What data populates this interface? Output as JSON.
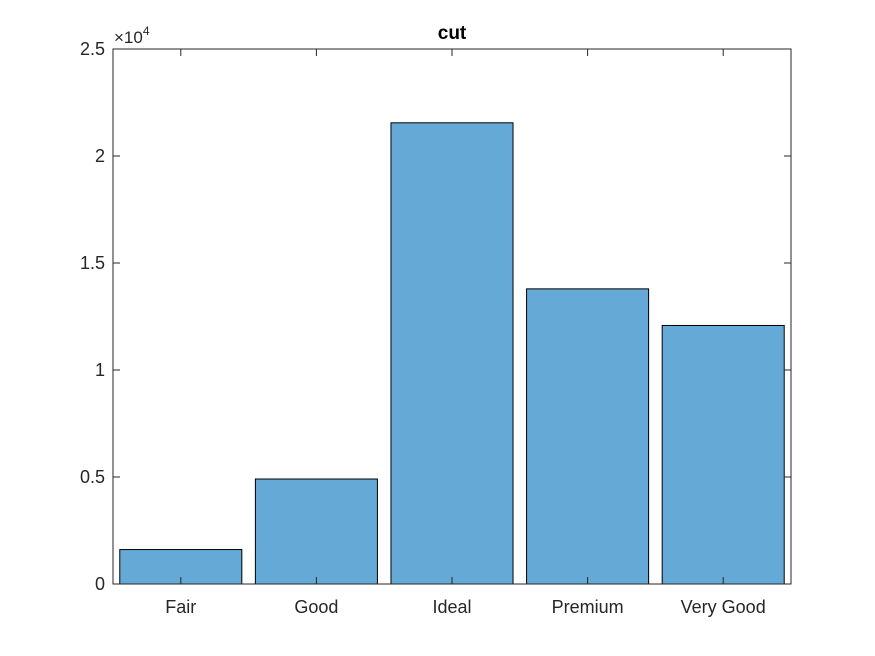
{
  "chart_data": {
    "type": "bar",
    "title": "cut",
    "xlabel": "",
    "ylabel": "",
    "categories": [
      "Fair",
      "Good",
      "Ideal",
      "Premium",
      "Very Good"
    ],
    "values": [
      1610,
      4906,
      21551,
      13791,
      12082
    ],
    "ylim": [
      0,
      25000
    ],
    "yticks": [
      0,
      0.5,
      1,
      1.5,
      2,
      2.5
    ],
    "ytick_labels": [
      "0",
      "0.5",
      "1",
      "1.5",
      "2",
      "2.5"
    ],
    "y_exponent_label": "×10",
    "y_exponent_power": "4",
    "grid": false,
    "legend": "none",
    "colors": {
      "bar_fill": "#65a9d7",
      "bar_edge": "#000000",
      "axis": "#262626"
    }
  }
}
